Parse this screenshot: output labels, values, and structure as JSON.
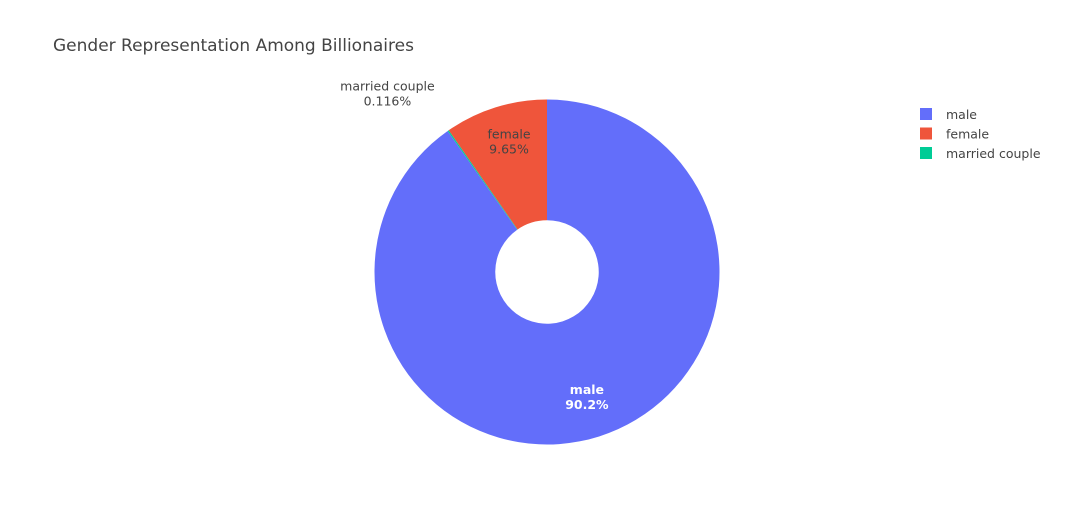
{
  "chart_data": {
    "type": "pie",
    "title": "Gender Representation Among Billionaires",
    "hole": 0.3,
    "labels": [
      "male",
      "female",
      "married couple"
    ],
    "values": [
      90.2,
      9.65,
      0.116
    ],
    "percent_text": [
      "90.2%",
      "9.65%",
      "0.116%"
    ],
    "colors": [
      "#636efa",
      "#EF553B",
      "#00cc96"
    ],
    "legend": {
      "position": "top-right",
      "entries": [
        "male",
        "female",
        "married couple"
      ]
    }
  }
}
